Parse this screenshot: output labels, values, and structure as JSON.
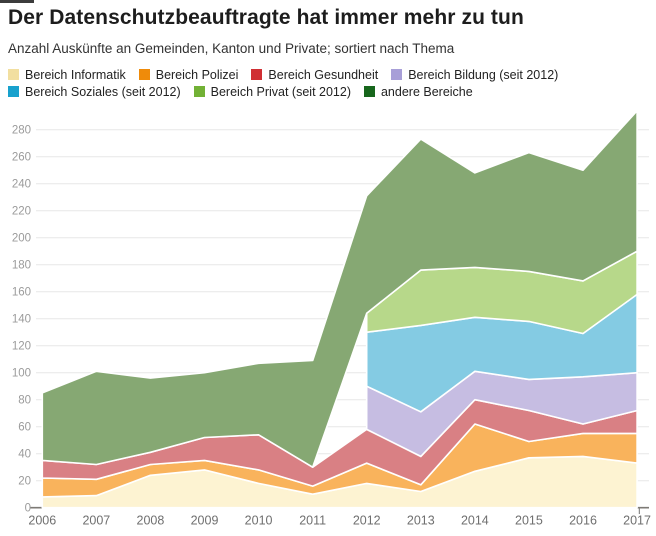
{
  "header": {
    "title": "Der Datenschutzbeauftragte hat immer mehr zu tun",
    "subtitle": "Anzahl Auskünfte an Gemeinden, Kanton und Private; sortiert nach Thema"
  },
  "chart_data": {
    "type": "area",
    "stacked": true,
    "grid": true,
    "legend_position": "top",
    "x": [
      2006,
      2007,
      2008,
      2009,
      2010,
      2011,
      2012,
      2013,
      2014,
      2015,
      2016,
      2017
    ],
    "yticks": [
      0,
      20,
      40,
      60,
      80,
      100,
      120,
      140,
      160,
      180,
      200,
      220,
      240,
      260,
      280
    ],
    "ylim": [
      0,
      300
    ],
    "series": [
      {
        "name": "Bereich Informatik",
        "legend_color": "#f2dfa0",
        "area_color": "#fdf3d2",
        "values": [
          8,
          9,
          24,
          28,
          18,
          10,
          18,
          12,
          27,
          37,
          38,
          33
        ]
      },
      {
        "name": "Bereich Polizei",
        "legend_color": "#ef8b0a",
        "area_color": "#f9b35c",
        "values": [
          14,
          12,
          8,
          7,
          10,
          6,
          15,
          5,
          35,
          12,
          17,
          22
        ]
      },
      {
        "name": "Bereich Gesundheit",
        "legend_color": "#d02f34",
        "area_color": "#d98084",
        "values": [
          13,
          11,
          9,
          17,
          26,
          14,
          25,
          21,
          18,
          23,
          7,
          17
        ]
      },
      {
        "name": "Bereich Bildung (seit 2012)",
        "legend_color": "#a89fd8",
        "area_color": "#c6bde2",
        "values": [
          null,
          null,
          null,
          null,
          null,
          null,
          32,
          33,
          21,
          23,
          35,
          28
        ]
      },
      {
        "name": "Bereich Soziales (seit 2012)",
        "legend_color": "#18a1cd",
        "area_color": "#84cbe3",
        "values": [
          null,
          null,
          null,
          null,
          null,
          null,
          40,
          64,
          40,
          43,
          32,
          58
        ]
      },
      {
        "name": "Bereich Privat (seit 2012)",
        "legend_color": "#72b135",
        "area_color": "#b7d88a",
        "values": [
          null,
          null,
          null,
          null,
          null,
          null,
          14,
          41,
          37,
          37,
          39,
          32
        ]
      },
      {
        "name": "andere Bereiche",
        "legend_color": "#17661c",
        "area_color": "#86a873",
        "values": [
          50,
          69,
          55,
          48,
          53,
          79,
          87,
          97,
          70,
          88,
          82,
          104
        ]
      }
    ]
  }
}
